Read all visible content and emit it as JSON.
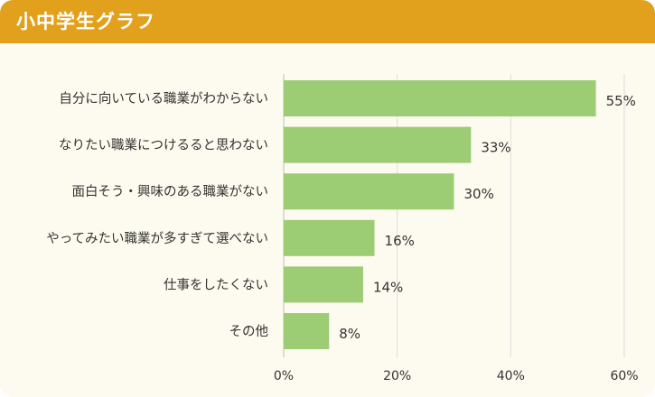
{
  "header": {
    "title": "小中学生グラフ"
  },
  "chart_data": {
    "type": "bar",
    "orientation": "horizontal",
    "categories": [
      "自分に向いている職業がわからない",
      "なりたい職業につけるると思わない",
      "面白そう・興味のある職業がない",
      "やってみたい職業が多すぎて選べない",
      "仕事をしたくない",
      "その他"
    ],
    "values": [
      55,
      33,
      30,
      16,
      14,
      8
    ],
    "value_labels": [
      "55%",
      "33%",
      "30%",
      "16%",
      "14%",
      "8%"
    ],
    "xlim": [
      0,
      60
    ],
    "ticks": [
      0,
      20,
      40,
      60
    ],
    "tick_labels": [
      "0%",
      "20%",
      "40%",
      "60%"
    ],
    "grid": true,
    "colors": {
      "bar": "#9ccc74",
      "header": "#e2a11c",
      "background": "#fdfbef",
      "grid": "#dcdcdc"
    }
  }
}
